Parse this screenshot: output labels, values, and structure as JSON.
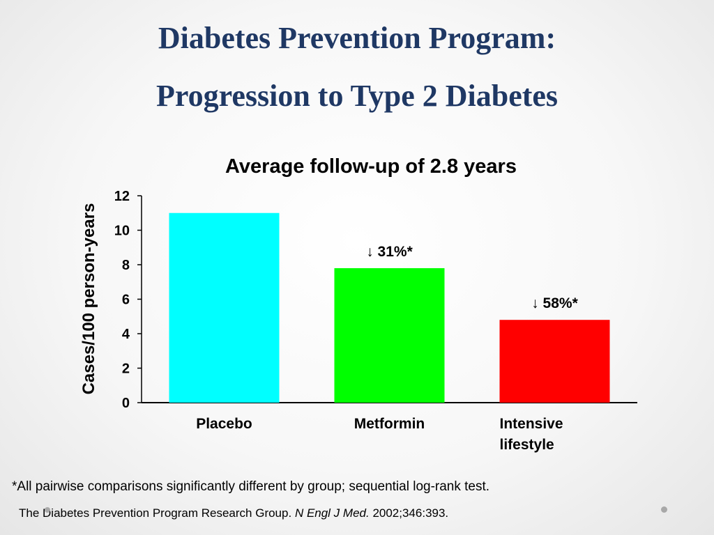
{
  "slide": {
    "title_line1": "Diabetes Prevention Program:",
    "title_line2": "Progression to Type 2 Diabetes",
    "footnote": "*All pairwise comparisons significantly different by group; sequential log-rank test.",
    "citation": {
      "prefix": "The Diabetes Prevention Program Research Group.",
      "journal": "N Engl J Med.",
      "suffix": "2002;346:393."
    }
  },
  "chart_data": {
    "type": "bar",
    "title": "Average follow-up of 2.8 years",
    "xlabel": "",
    "ylabel": "Cases/100 person-years",
    "ylim": [
      0,
      12
    ],
    "yticks": [
      "0",
      "2",
      "4",
      "6",
      "8",
      "10",
      "12"
    ],
    "categories": [
      "Placebo",
      "Metformin",
      "Intensive lifestyle"
    ],
    "category_label_lines": [
      [
        "Placebo"
      ],
      [
        "Metformin"
      ],
      [
        "Intensive",
        "lifestyle"
      ]
    ],
    "values": [
      11.0,
      7.8,
      4.8
    ],
    "colors": [
      "#00ffff",
      "#00ff00",
      "#ff0000"
    ],
    "annotations": [
      "",
      "↓ 31%*",
      "↓ 58%*"
    ],
    "grid": false
  }
}
